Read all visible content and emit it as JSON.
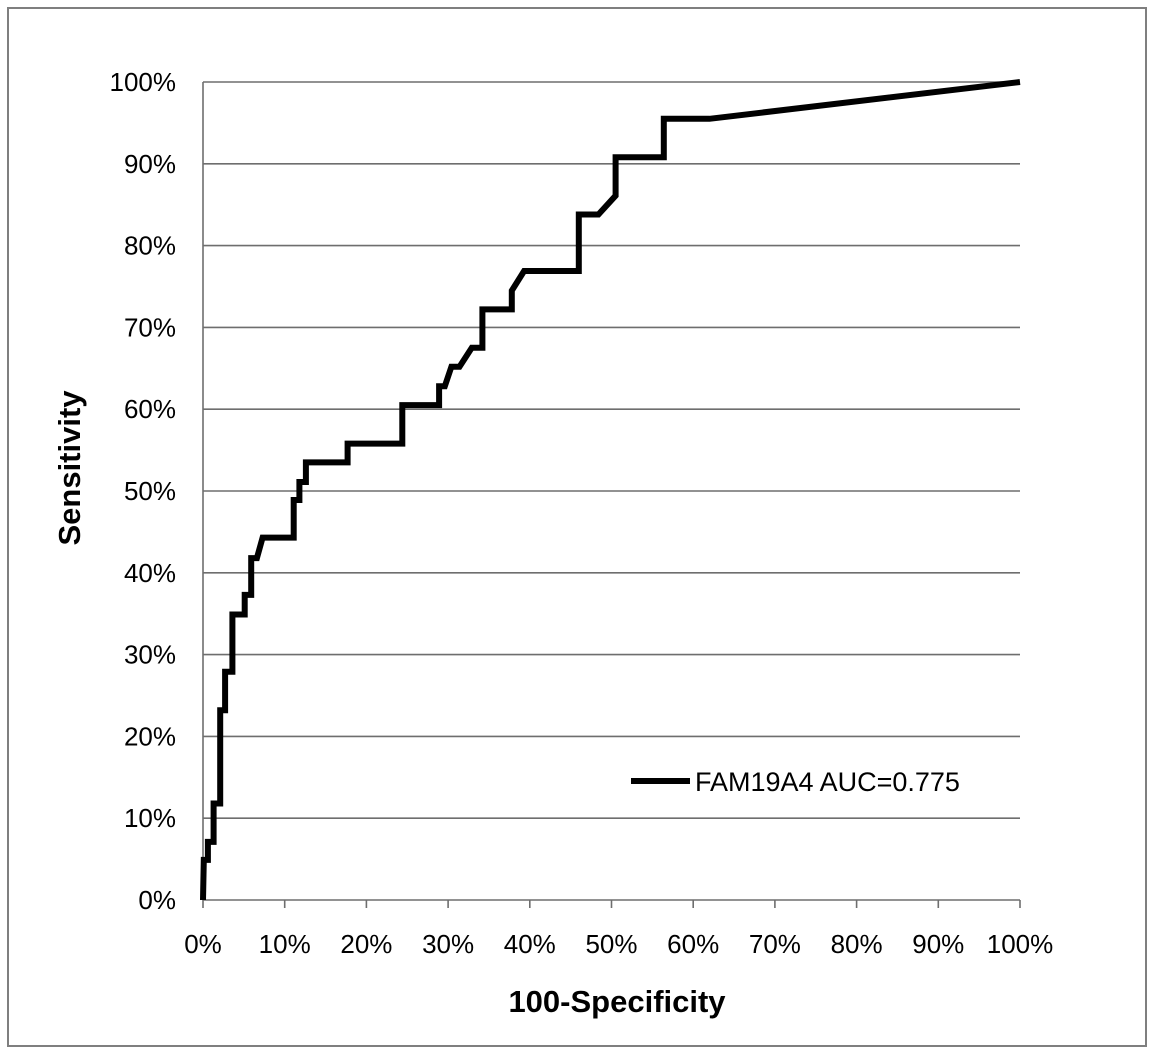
{
  "chart_data": {
    "type": "line",
    "title": "",
    "xlabel": "100-Specificity",
    "ylabel": "Sensitivity",
    "xlim": [
      0,
      100
    ],
    "ylim": [
      0,
      100
    ],
    "x_ticks": [
      "0%",
      "10%",
      "20%",
      "30%",
      "40%",
      "50%",
      "60%",
      "70%",
      "80%",
      "90%",
      "100%"
    ],
    "y_ticks": [
      "0%",
      "10%",
      "20%",
      "30%",
      "40%",
      "50%",
      "60%",
      "70%",
      "80%",
      "90%",
      "100%"
    ],
    "grid": "horizontal",
    "legend_position": "bottom-right",
    "line_color": "#000000",
    "series": [
      {
        "name": "FAM19A4 AUC=0.775",
        "x": [
          0,
          0.1,
          0.6,
          0.6,
          1.3,
          1.3,
          2.1,
          2.1,
          2.7,
          2.7,
          3.6,
          3.6,
          5.1,
          5.1,
          5.9,
          5.9,
          6.6,
          7.3,
          11.1,
          11.1,
          11.8,
          11.8,
          12.6,
          12.6,
          17.7,
          17.7,
          24.4,
          24.4,
          28.9,
          28.9,
          29.6,
          30.4,
          31.4,
          32.9,
          34.2,
          34.2,
          37.8,
          37.8,
          39.3,
          46.0,
          46.0,
          48.4,
          50.5,
          50.5,
          56.4,
          56.4,
          62.0,
          100
        ],
        "y": [
          0,
          4.9,
          4.9,
          7.1,
          7.1,
          11.8,
          11.8,
          23.2,
          23.2,
          27.9,
          27.9,
          34.9,
          34.9,
          37.3,
          37.3,
          41.8,
          41.8,
          44.3,
          44.3,
          48.9,
          48.9,
          51.1,
          51.1,
          53.5,
          53.5,
          55.8,
          55.8,
          60.5,
          60.5,
          62.8,
          62.8,
          65.2,
          65.2,
          67.5,
          67.5,
          72.2,
          72.2,
          74.5,
          76.9,
          76.9,
          83.8,
          83.8,
          86.1,
          90.8,
          90.8,
          95.5,
          95.5,
          100
        ]
      }
    ]
  }
}
